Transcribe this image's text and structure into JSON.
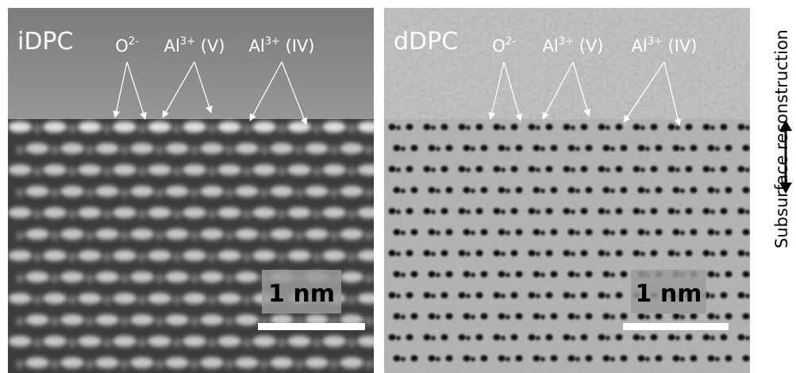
{
  "panels": [
    {
      "label": "iDPC",
      "annotations": [
        {
          "base": "O",
          "sup": "2-"
        },
        {
          "base": "Al",
          "sup": "3+",
          "suffix": " (V)"
        },
        {
          "base": "Al",
          "sup": "3+",
          "suffix": " (IV)"
        }
      ],
      "scale_bar": "1 nm"
    },
    {
      "label": "dDPC",
      "annotations": [
        {
          "base": "O",
          "sup": "2-"
        },
        {
          "base": "Al",
          "sup": "3+",
          "suffix": " (V)"
        },
        {
          "base": "Al",
          "sup": "3+",
          "suffix": " (IV)"
        }
      ],
      "scale_bar": "1 nm"
    }
  ],
  "side_label": "Subsurface reconstruction"
}
